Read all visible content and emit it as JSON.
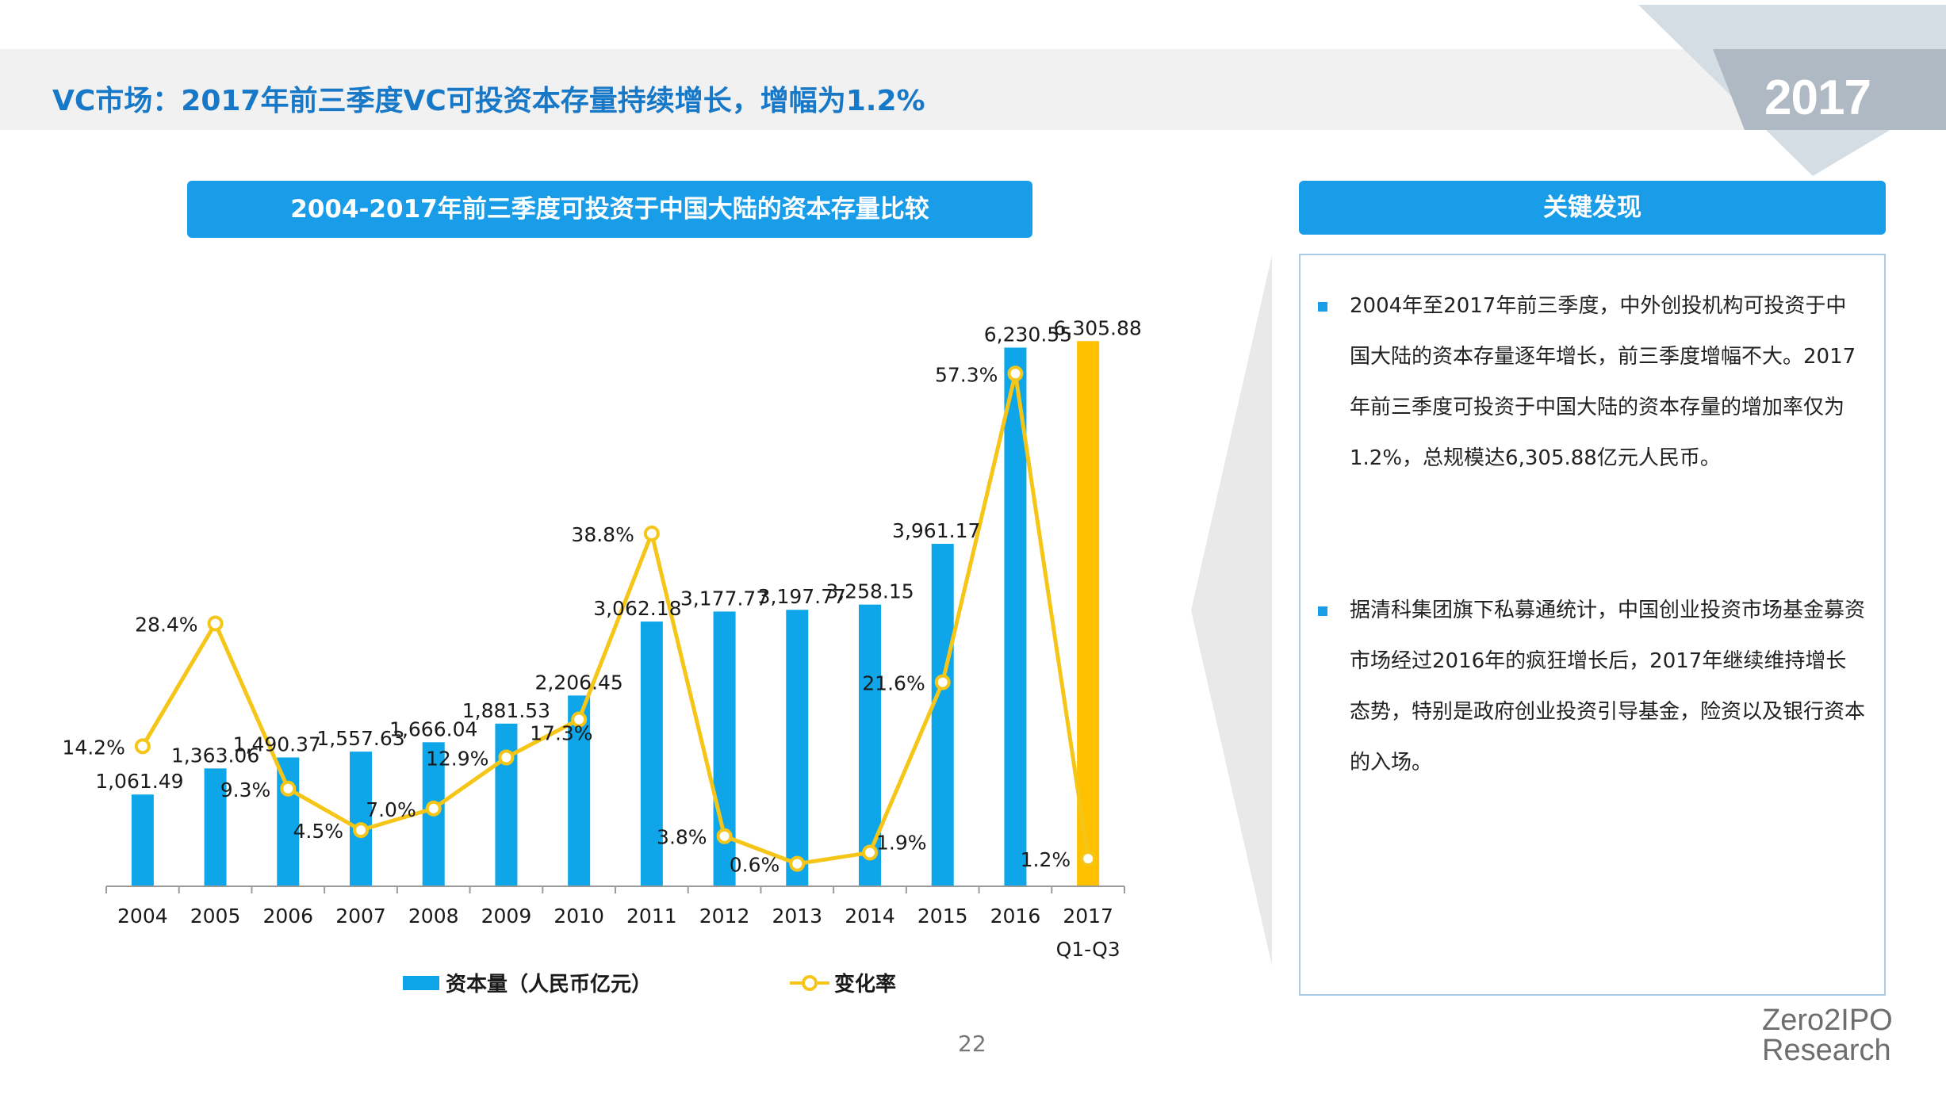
{
  "page": {
    "title": "VC市场：2017年前三季度VC可投资本存量持续增长，增幅为1.2%",
    "year_badge": "2017",
    "page_number": "22",
    "logo_line1": "Zero2IPO",
    "logo_line2": "Research"
  },
  "colors": {
    "accent": "#1a9de8",
    "title_text": "#1878c8",
    "bar": "#0ea5e9",
    "bar_highlight": "#ffc000",
    "line": "#f5c518"
  },
  "findings": {
    "header": "关键发现",
    "items": [
      "2004年至2017年前三季度，中外创投机构可投资于中国大陆的资本存量逐年增长，前三季度增幅不大。2017年前三季度可投资于中国大陆的资本存量的增加率仅为1.2%，总规模达6,305.88亿元人民币。",
      "据清科集团旗下私募通统计，中国创业投资市场基金募资市场经过2016年的疯狂增长后，2017年继续维持增长态势，特别是政府创业投资引导基金，险资以及银行资本的入场。"
    ]
  },
  "chart_data": {
    "type": "bar",
    "title": "2004-2017年前三季度可投资于中国大陆的资本存量比较",
    "categories": [
      "2004",
      "2005",
      "2006",
      "2007",
      "2008",
      "2009",
      "2010",
      "2011",
      "2012",
      "2013",
      "2014",
      "2015",
      "2016",
      "2017 Q1-Q3"
    ],
    "category_labels": [
      [
        "2004"
      ],
      [
        "2005"
      ],
      [
        "2006"
      ],
      [
        "2007"
      ],
      [
        "2008"
      ],
      [
        "2009"
      ],
      [
        "2010"
      ],
      [
        "2011"
      ],
      [
        "2012"
      ],
      [
        "2013"
      ],
      [
        "2014"
      ],
      [
        "2015"
      ],
      [
        "2016"
      ],
      [
        "2017",
        "Q1-Q3"
      ]
    ],
    "series": [
      {
        "name": "资本量（人民币亿元）",
        "kind": "bar",
        "values": [
          1061.49,
          1363.06,
          1490.37,
          1557.63,
          1666.04,
          1881.53,
          2206.45,
          3062.18,
          3177.77,
          3197.77,
          3258.15,
          3961.17,
          6230.55,
          6305.88
        ],
        "labels": [
          "1,061.49",
          "1,363.06",
          "1,490.37",
          "1,557.63",
          "1,666.04",
          "1,881.53",
          "2,206.45",
          "3,062.18",
          "3,177.77",
          "3,197.77",
          "3,258.15",
          "3,961.17",
          "6,230.55",
          "6,305.88"
        ]
      },
      {
        "name": "变化率",
        "kind": "line",
        "values": [
          14.2,
          28.4,
          9.3,
          4.5,
          7.0,
          12.9,
          17.3,
          38.8,
          3.8,
          0.6,
          1.9,
          21.6,
          57.3,
          1.2
        ],
        "labels": [
          "14.2%",
          "28.4%",
          "9.3%",
          "4.5%",
          "7.0%",
          "12.9%",
          "17.3%",
          "38.8%",
          "3.8%",
          "0.6%",
          "1.9%",
          "21.6%",
          "57.3%",
          "1.2%"
        ]
      }
    ],
    "highlight_last_bar": true,
    "bar_ylim": [
      0,
      6400
    ],
    "line_ylim": [
      -2,
      62
    ],
    "legend_position": "bottom"
  }
}
